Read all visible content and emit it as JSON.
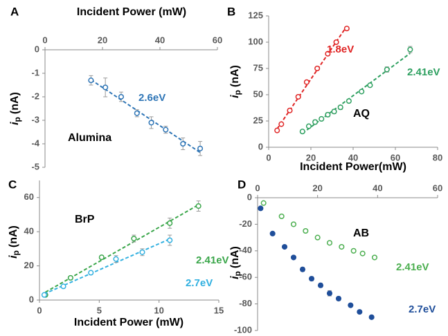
{
  "chart_data": [
    {
      "type": "scatter",
      "panel": "A",
      "xlabel": "Incident Power (mW)",
      "ylabel": "i",
      "ylabel_sub": "p",
      "ylabel_unit": "(nA)",
      "xaxis": "top",
      "xlim": [
        0,
        60
      ],
      "xticks": [
        0,
        20,
        40,
        60
      ],
      "ylim": [
        -5,
        0
      ],
      "yticks": [
        0,
        -1,
        -2,
        -3,
        -4,
        -5
      ],
      "trendline": true,
      "annotation": "Alumina",
      "series": [
        {
          "name": "2.6eV",
          "color": "#2e75b6",
          "marker": "open",
          "x": [
            16,
            21,
            26.5,
            32,
            37,
            42,
            48,
            54
          ],
          "values": [
            -1.3,
            -1.6,
            -2.0,
            -2.7,
            -3.1,
            -3.4,
            -4.0,
            -4.2
          ],
          "errors": [
            0.2,
            0.4,
            0.2,
            0.15,
            0.25,
            0.15,
            0.25,
            0.3
          ]
        }
      ]
    },
    {
      "type": "scatter",
      "panel": "B",
      "xlabel": "Incident Power(mW)",
      "ylabel": "i",
      "ylabel_sub": "p",
      "ylabel_unit": "(nA)",
      "xaxis": "bottom",
      "xlim": [
        0,
        80
      ],
      "xticks": [
        0,
        20,
        40,
        60,
        80
      ],
      "ylim": [
        0,
        125
      ],
      "yticks": [
        0,
        25,
        50,
        75,
        100,
        125
      ],
      "trendline": true,
      "annotation": "AQ",
      "series": [
        {
          "name": "1.8eV",
          "color": "#e02424",
          "marker": "open",
          "x": [
            4,
            6,
            10,
            14,
            18,
            23,
            28,
            32,
            37
          ],
          "values": [
            16,
            22,
            35,
            48,
            62,
            75,
            89,
            100,
            113
          ],
          "errors": [
            1.5,
            1.5,
            1.5,
            1.5,
            1.5,
            1.5,
            1.5,
            1.5,
            1.5
          ]
        },
        {
          "name": "2.41eV",
          "color": "#2ea060",
          "marker": "open",
          "x": [
            16,
            19,
            22,
            25,
            28,
            31,
            34,
            38,
            44,
            48,
            56,
            67
          ],
          "values": [
            15,
            20,
            24,
            27,
            31,
            34,
            38,
            44,
            53,
            59,
            74,
            93
          ],
          "errors": [
            1.5,
            1.5,
            2,
            1.5,
            2,
            2,
            2,
            1.5,
            1.5,
            1.5,
            2.5,
            3
          ]
        }
      ]
    },
    {
      "type": "scatter",
      "panel": "C",
      "xlabel": "Incident Power (mW)",
      "ylabel": "i",
      "ylabel_sub": "p",
      "ylabel_unit": "(nA)",
      "xaxis": "bottom",
      "xlim": [
        0,
        15
      ],
      "xticks": [
        0,
        5,
        10,
        15
      ],
      "ylim": [
        0,
        70
      ],
      "yticks": [
        0,
        20,
        40,
        60
      ],
      "trendline": true,
      "annotation": "BrP",
      "series": [
        {
          "name": "2.41eV",
          "color": "#3aa64a",
          "marker": "open",
          "x": [
            0.5,
            2.6,
            5.2,
            7.9,
            10.9,
            13.3
          ],
          "values": [
            3,
            13,
            25,
            36,
            45,
            55
          ],
          "errors": [
            0.5,
            0.8,
            1,
            2,
            3,
            3
          ]
        },
        {
          "name": "2.7eV",
          "color": "#31b0e0",
          "marker": "open",
          "x": [
            0.4,
            2,
            4.3,
            6.4,
            8.6,
            10.9
          ],
          "values": [
            3,
            8,
            16,
            24,
            28,
            35
          ],
          "errors": [
            0.5,
            0.8,
            1,
            2,
            2,
            3
          ]
        }
      ]
    },
    {
      "type": "scatter",
      "panel": "D",
      "ylabel": "i",
      "ylabel_sub": "p",
      "ylabel_unit": "(nA)",
      "xaxis": "top",
      "xlim": [
        0,
        60
      ],
      "xticks": [
        0,
        20,
        40,
        60
      ],
      "ylim": [
        -100,
        0
      ],
      "yticks": [
        0,
        -20,
        -40,
        -60,
        -80,
        -100
      ],
      "trendline": false,
      "annotation": "AB",
      "series": [
        {
          "name": "2.41eV",
          "color": "#4caf50",
          "marker": "open",
          "x": [
            2,
            8,
            12,
            16,
            20,
            24,
            28,
            32,
            35,
            39
          ],
          "values": [
            -4,
            -14,
            -20,
            -25,
            -30,
            -34,
            -37,
            -40,
            -42,
            -45
          ],
          "errors": [
            0.5,
            0.5,
            0.5,
            0.5,
            0.5,
            0.5,
            0.5,
            0.5,
            0.8,
            1
          ]
        },
        {
          "name": "2.7eV",
          "color": "#1f4e9a",
          "marker": "filled",
          "x": [
            1,
            5,
            9,
            12,
            15,
            18,
            21,
            24,
            27,
            31,
            34,
            38
          ],
          "values": [
            -8,
            -27,
            -37,
            -45,
            -54,
            -61,
            -66,
            -72,
            -76,
            -81,
            -86,
            -90
          ],
          "errors": [
            0.5,
            0.8,
            0.8,
            0.8,
            1.5,
            1.5,
            1.5,
            2,
            1.5,
            1,
            1,
            1
          ]
        }
      ]
    }
  ]
}
